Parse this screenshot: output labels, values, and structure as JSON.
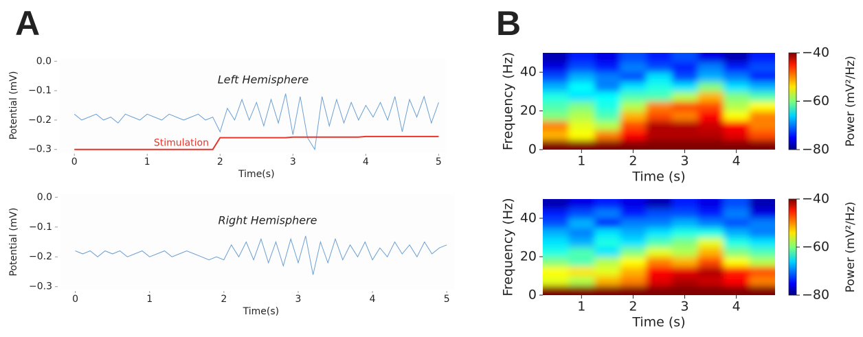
{
  "chart_data": [
    {
      "type": "line",
      "panel": "A",
      "title": "Left Hemisphere",
      "xlabel": "Time(s)",
      "ylabel": "Potential (mV)",
      "x": [
        0,
        0.1,
        0.2,
        0.3,
        0.4,
        0.5,
        0.6,
        0.7,
        0.8,
        0.9,
        1,
        1.1,
        1.2,
        1.3,
        1.4,
        1.5,
        1.6,
        1.7,
        1.8,
        1.9,
        2,
        2.1,
        2.2,
        2.3,
        2.4,
        2.5,
        2.6,
        2.7,
        2.8,
        2.9,
        3,
        3.1,
        3.2,
        3.3,
        3.4,
        3.5,
        3.6,
        3.7,
        3.8,
        3.9,
        4,
        4.1,
        4.2,
        4.3,
        4.4,
        4.5,
        4.6,
        4.7,
        4.8,
        4.9,
        5
      ],
      "series": [
        {
          "color": "#6a9fd4",
          "values": [
            -0.18,
            -0.2,
            -0.19,
            -0.18,
            -0.2,
            -0.19,
            -0.21,
            -0.18,
            -0.19,
            -0.2,
            -0.18,
            -0.19,
            -0.2,
            -0.18,
            -0.19,
            -0.2,
            -0.19,
            -0.18,
            -0.2,
            -0.19,
            -0.24,
            -0.16,
            -0.2,
            -0.13,
            -0.2,
            -0.14,
            -0.22,
            -0.13,
            -0.21,
            -0.11,
            -0.25,
            -0.12,
            -0.26,
            -0.3,
            -0.12,
            -0.22,
            -0.13,
            -0.21,
            -0.14,
            -0.2,
            -0.15,
            -0.19,
            -0.14,
            -0.2,
            -0.12,
            -0.24,
            -0.13,
            -0.19,
            -0.12,
            -0.21,
            -0.14
          ]
        },
        {
          "name": "Stimulation",
          "color": "#e8352a",
          "values": [
            -0.3,
            -0.3,
            -0.3,
            -0.3,
            -0.3,
            -0.3,
            -0.3,
            -0.3,
            -0.3,
            -0.3,
            -0.3,
            -0.3,
            -0.3,
            -0.3,
            -0.3,
            -0.3,
            -0.3,
            -0.3,
            -0.3,
            -0.3,
            -0.26,
            -0.26,
            -0.26,
            -0.26,
            -0.26,
            -0.26,
            -0.26,
            -0.26,
            -0.26,
            -0.26,
            -0.258,
            -0.258,
            -0.258,
            -0.258,
            -0.258,
            -0.258,
            -0.258,
            -0.258,
            -0.258,
            -0.258,
            -0.256,
            -0.256,
            -0.256,
            -0.256,
            -0.256,
            -0.256,
            -0.256,
            -0.256,
            -0.256,
            -0.256,
            -0.256
          ]
        }
      ],
      "xlim": [
        -0.2,
        5.1
      ],
      "xticks": [
        0,
        1,
        2,
        3,
        4,
        5
      ],
      "ylim": [
        -0.31,
        0.01
      ],
      "yticks": [
        {
          "value": 0,
          "label": "0.0"
        },
        {
          "value": -0.1,
          "label": "−0.1"
        },
        {
          "value": -0.2,
          "label": "−0.2"
        },
        {
          "value": -0.3,
          "label": "−0.3"
        }
      ]
    },
    {
      "type": "line",
      "title": "Right Hemisphere",
      "xlabel": "Time(s)",
      "ylabel": "Potential (mV)",
      "x": [
        0,
        0.1,
        0.2,
        0.3,
        0.4,
        0.5,
        0.6,
        0.7,
        0.8,
        0.9,
        1,
        1.1,
        1.2,
        1.3,
        1.4,
        1.5,
        1.6,
        1.7,
        1.8,
        1.9,
        2,
        2.1,
        2.2,
        2.3,
        2.4,
        2.5,
        2.6,
        2.7,
        2.8,
        2.9,
        3,
        3.1,
        3.2,
        3.3,
        3.4,
        3.5,
        3.6,
        3.7,
        3.8,
        3.9,
        4,
        4.1,
        4.2,
        4.3,
        4.4,
        4.5,
        4.6,
        4.7,
        4.8,
        4.9,
        5
      ],
      "series": [
        {
          "color": "#6a9fd4",
          "values": [
            -0.18,
            -0.19,
            -0.18,
            -0.2,
            -0.18,
            -0.19,
            -0.18,
            -0.2,
            -0.19,
            -0.18,
            -0.2,
            -0.19,
            -0.18,
            -0.2,
            -0.19,
            -0.18,
            -0.19,
            -0.2,
            -0.21,
            -0.2,
            -0.21,
            -0.16,
            -0.2,
            -0.15,
            -0.21,
            -0.14,
            -0.22,
            -0.15,
            -0.23,
            -0.14,
            -0.22,
            -0.13,
            -0.26,
            -0.15,
            -0.22,
            -0.14,
            -0.21,
            -0.16,
            -0.2,
            -0.15,
            -0.21,
            -0.17,
            -0.2,
            -0.15,
            -0.19,
            -0.16,
            -0.2,
            -0.15,
            -0.19,
            -0.17,
            -0.16
          ]
        }
      ],
      "xlim": [
        -0.2,
        5.1
      ],
      "xticks": [
        0,
        1,
        2,
        3,
        4,
        5
      ],
      "ylim": [
        -0.31,
        0.01
      ],
      "yticks": [
        {
          "value": 0,
          "label": "0.0"
        },
        {
          "value": -0.1,
          "label": "−0.1"
        },
        {
          "value": -0.2,
          "label": "−0.2"
        },
        {
          "value": -0.3,
          "label": "−0.3"
        }
      ]
    },
    {
      "type": "heatmap",
      "panel": "B",
      "xlabel": "Time (s)",
      "ylabel": "Frequency (Hz)",
      "colorbar_label": "Power (mV²/Hz)",
      "colormap": "jet",
      "x": [
        0.5,
        1,
        1.5,
        2,
        2.5,
        3,
        3.5,
        4,
        4.5
      ],
      "y": [
        2.5,
        7.5,
        12.5,
        17.5,
        22.5,
        27.5,
        32.5,
        37.5,
        42.5,
        47.5
      ],
      "z": [
        [
          -40,
          -40,
          -40,
          -40,
          -40,
          -40,
          -40,
          -40,
          -40
        ],
        [
          -52,
          -55,
          -50,
          -45,
          -42,
          -42,
          -42,
          -44,
          -48
        ],
        [
          -50,
          -56,
          -58,
          -48,
          -42,
          -42,
          -43,
          -45,
          -50
        ],
        [
          -60,
          -58,
          -62,
          -52,
          -48,
          -50,
          -45,
          -55,
          -50
        ],
        [
          -62,
          -60,
          -64,
          -58,
          -50,
          -48,
          -48,
          -58,
          -55
        ],
        [
          -64,
          -66,
          -65,
          -62,
          -62,
          -58,
          -52,
          -60,
          -62
        ],
        [
          -68,
          -65,
          -70,
          -66,
          -64,
          -66,
          -60,
          -66,
          -68
        ],
        [
          -72,
          -68,
          -70,
          -72,
          -66,
          -72,
          -68,
          -70,
          -74
        ],
        [
          -76,
          -72,
          -74,
          -70,
          -72,
          -74,
          -70,
          -74,
          -72
        ],
        [
          -78,
          -74,
          -76,
          -72,
          -74,
          -72,
          -76,
          -78,
          -74
        ]
      ],
      "xlim": [
        0.25,
        4.75
      ],
      "xticks": [
        1,
        2,
        3,
        4
      ],
      "ylim": [
        0,
        50
      ],
      "yticks": [
        0,
        20,
        40
      ],
      "clim": [
        -80,
        -40
      ],
      "cticks": [
        {
          "value": -40,
          "label": "−40"
        },
        {
          "value": -60,
          "label": "−60"
        },
        {
          "value": -80,
          "label": "−80"
        }
      ]
    },
    {
      "type": "heatmap",
      "xlabel": "Time (s)",
      "ylabel": "Frequency (Hz)",
      "colorbar_label": "Power (mV²/Hz)",
      "colormap": "jet",
      "x": [
        0.5,
        1,
        1.5,
        2,
        2.5,
        3,
        3.5,
        4,
        4.5
      ],
      "y": [
        2.5,
        7.5,
        12.5,
        17.5,
        22.5,
        27.5,
        32.5,
        37.5,
        42.5,
        47.5
      ],
      "z": [
        [
          -40,
          -40,
          -40,
          -40,
          -40,
          -40,
          -40,
          -40,
          -40
        ],
        [
          -56,
          -58,
          -52,
          -50,
          -44,
          -42,
          -43,
          -45,
          -50
        ],
        [
          -55,
          -54,
          -56,
          -52,
          -45,
          -44,
          -42,
          -46,
          -48
        ],
        [
          -60,
          -62,
          -58,
          -55,
          -50,
          -52,
          -48,
          -55,
          -58
        ],
        [
          -64,
          -62,
          -66,
          -60,
          -56,
          -58,
          -52,
          -60,
          -62
        ],
        [
          -66,
          -68,
          -64,
          -66,
          -62,
          -60,
          -56,
          -64,
          -66
        ],
        [
          -68,
          -70,
          -66,
          -68,
          -66,
          -64,
          -64,
          -68,
          -70
        ],
        [
          -72,
          -68,
          -74,
          -70,
          -70,
          -68,
          -70,
          -72,
          -70
        ],
        [
          -74,
          -72,
          -70,
          -74,
          -72,
          -72,
          -74,
          -70,
          -76
        ],
        [
          -78,
          -76,
          -74,
          -76,
          -78,
          -74,
          -76,
          -72,
          -78
        ]
      ],
      "xlim": [
        0.25,
        4.75
      ],
      "xticks": [
        1,
        2,
        3,
        4
      ],
      "ylim": [
        0,
        50
      ],
      "yticks": [
        0,
        20,
        40
      ],
      "clim": [
        -80,
        -40
      ],
      "cticks": [
        {
          "value": -40,
          "label": "−40"
        },
        {
          "value": -60,
          "label": "−60"
        },
        {
          "value": -80,
          "label": "−80"
        }
      ]
    }
  ]
}
